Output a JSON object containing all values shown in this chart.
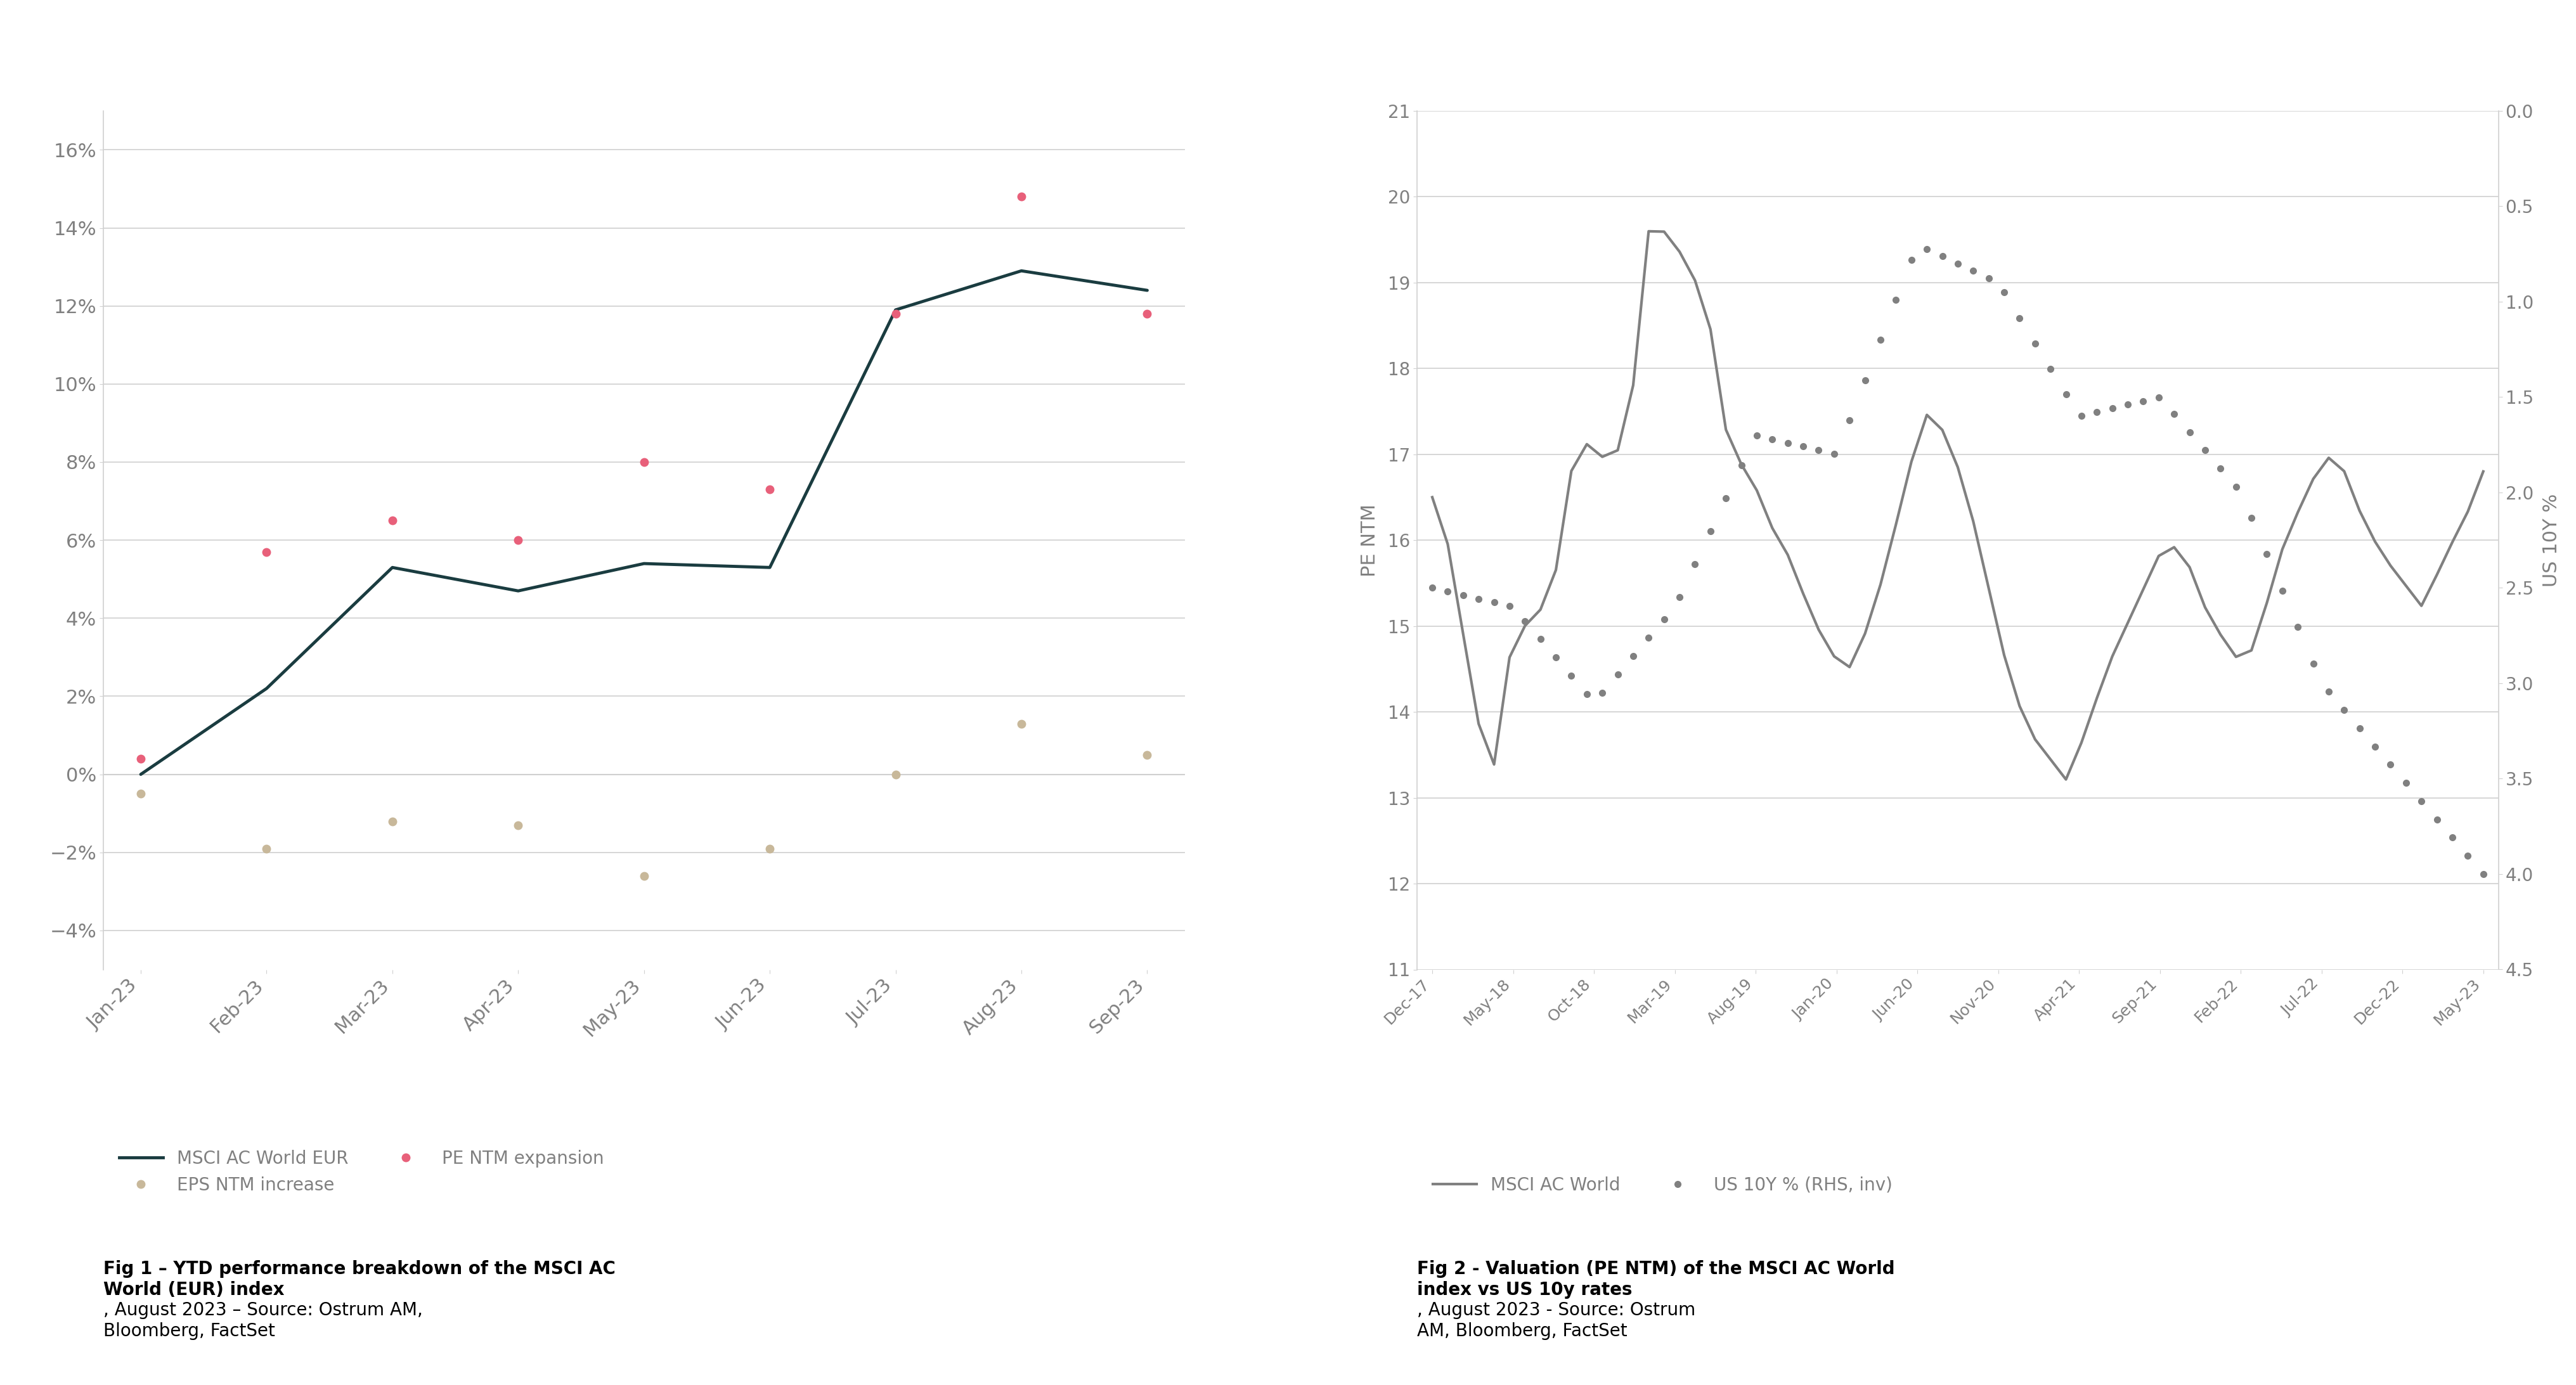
{
  "fig1": {
    "title": "",
    "caption_bold": "Fig 1 – YTD performance breakdown of the MSCI AC\nWorld (EUR) index",
    "caption_normal": ", August 2023 – Source: Ostrum AM,\nBloomberg, FactSet",
    "x_labels": [
      "Jan-23",
      "Feb-23",
      "Mar-23",
      "Apr-23",
      "May-23",
      "Jun-23",
      "Jul-23",
      "Aug-23",
      "Sep-23"
    ],
    "ylim": [
      -0.05,
      0.17
    ],
    "yticks": [
      -0.04,
      -0.02,
      0.0,
      0.02,
      0.04,
      0.06,
      0.08,
      0.1,
      0.12,
      0.14,
      0.16
    ],
    "msci_eur": [
      0.0,
      0.022,
      0.053,
      0.047,
      0.054,
      0.053,
      0.119,
      0.129,
      0.124
    ],
    "pe_ntm": [
      0.004,
      0.057,
      0.065,
      0.06,
      0.08,
      0.073,
      0.118,
      0.148,
      0.118
    ],
    "eps_ntm": [
      -0.005,
      -0.019,
      -0.012,
      -0.013,
      -0.026,
      -0.019,
      -0.0,
      0.013,
      0.005
    ],
    "msci_color": "#1a3c40",
    "pe_color": "#e8607a",
    "eps_color": "#c8b89a",
    "legend_labels": [
      "MSCI AC World EUR",
      "EPS NTM increase",
      "PE NTM expansion"
    ]
  },
  "fig2": {
    "caption_bold": "Fig 2 - Valuation (PE NTM) of the MSCI AC World\nindex vs US 10y rates",
    "caption_normal": ", August 2023 - Source: Ostrum\nAM, Bloomberg, FactSet",
    "x_labels": [
      "Dec-17",
      "May-18",
      "Oct-18",
      "Mar-19",
      "Aug-19",
      "Jan-20",
      "Jun-20",
      "Nov-20",
      "Apr-21",
      "Sep-21",
      "Feb-22",
      "Jul-22",
      "Dec-22",
      "May-23"
    ],
    "ylim_left": [
      11,
      21
    ],
    "ylim_right": [
      0.0,
      4.5
    ],
    "yticks_left": [
      11,
      12,
      13,
      14,
      15,
      16,
      17,
      18,
      19,
      20,
      21
    ],
    "yticks_right": [
      0.0,
      0.5,
      1.0,
      1.5,
      2.0,
      2.5,
      3.0,
      3.5,
      4.0,
      4.5
    ],
    "ylabel_left": "PE NTM",
    "ylabel_right": "US 10Y %",
    "msci_pe": [
      16.5,
      15.8,
      14.2,
      13.2,
      14.8,
      15.1,
      15.3,
      16.8,
      17.2,
      16.8,
      17.5,
      19.8,
      19.5,
      19.2,
      18.5,
      17.0,
      16.8,
      16.2,
      15.8,
      15.2,
      14.7,
      14.5,
      15.0,
      15.8,
      16.8,
      17.5,
      17.2,
      16.5,
      15.5,
      14.5,
      13.8,
      13.5,
      13.2,
      13.8,
      14.5,
      15.0,
      15.5,
      16.0,
      15.8,
      15.2,
      14.8,
      14.5,
      15.2,
      16.0,
      16.5,
      17.0,
      16.8,
      16.2,
      15.8,
      15.5,
      15.2,
      15.8,
      16.2,
      16.8
    ],
    "us10y_inv": [
      2.5,
      2.6,
      3.1,
      2.6,
      1.7,
      1.8,
      0.7,
      0.9,
      1.6,
      1.5,
      2.0,
      3.0,
      3.5,
      4.0
    ],
    "msci_color": "#808080",
    "us10y_color": "#808080",
    "legend_labels": [
      "MSCI AC World",
      "US 10Y % (RHS, inv)"
    ]
  },
  "background_color": "#ffffff",
  "grid_color": "#d0d0d0",
  "text_color": "#808080",
  "tick_color": "#808080"
}
